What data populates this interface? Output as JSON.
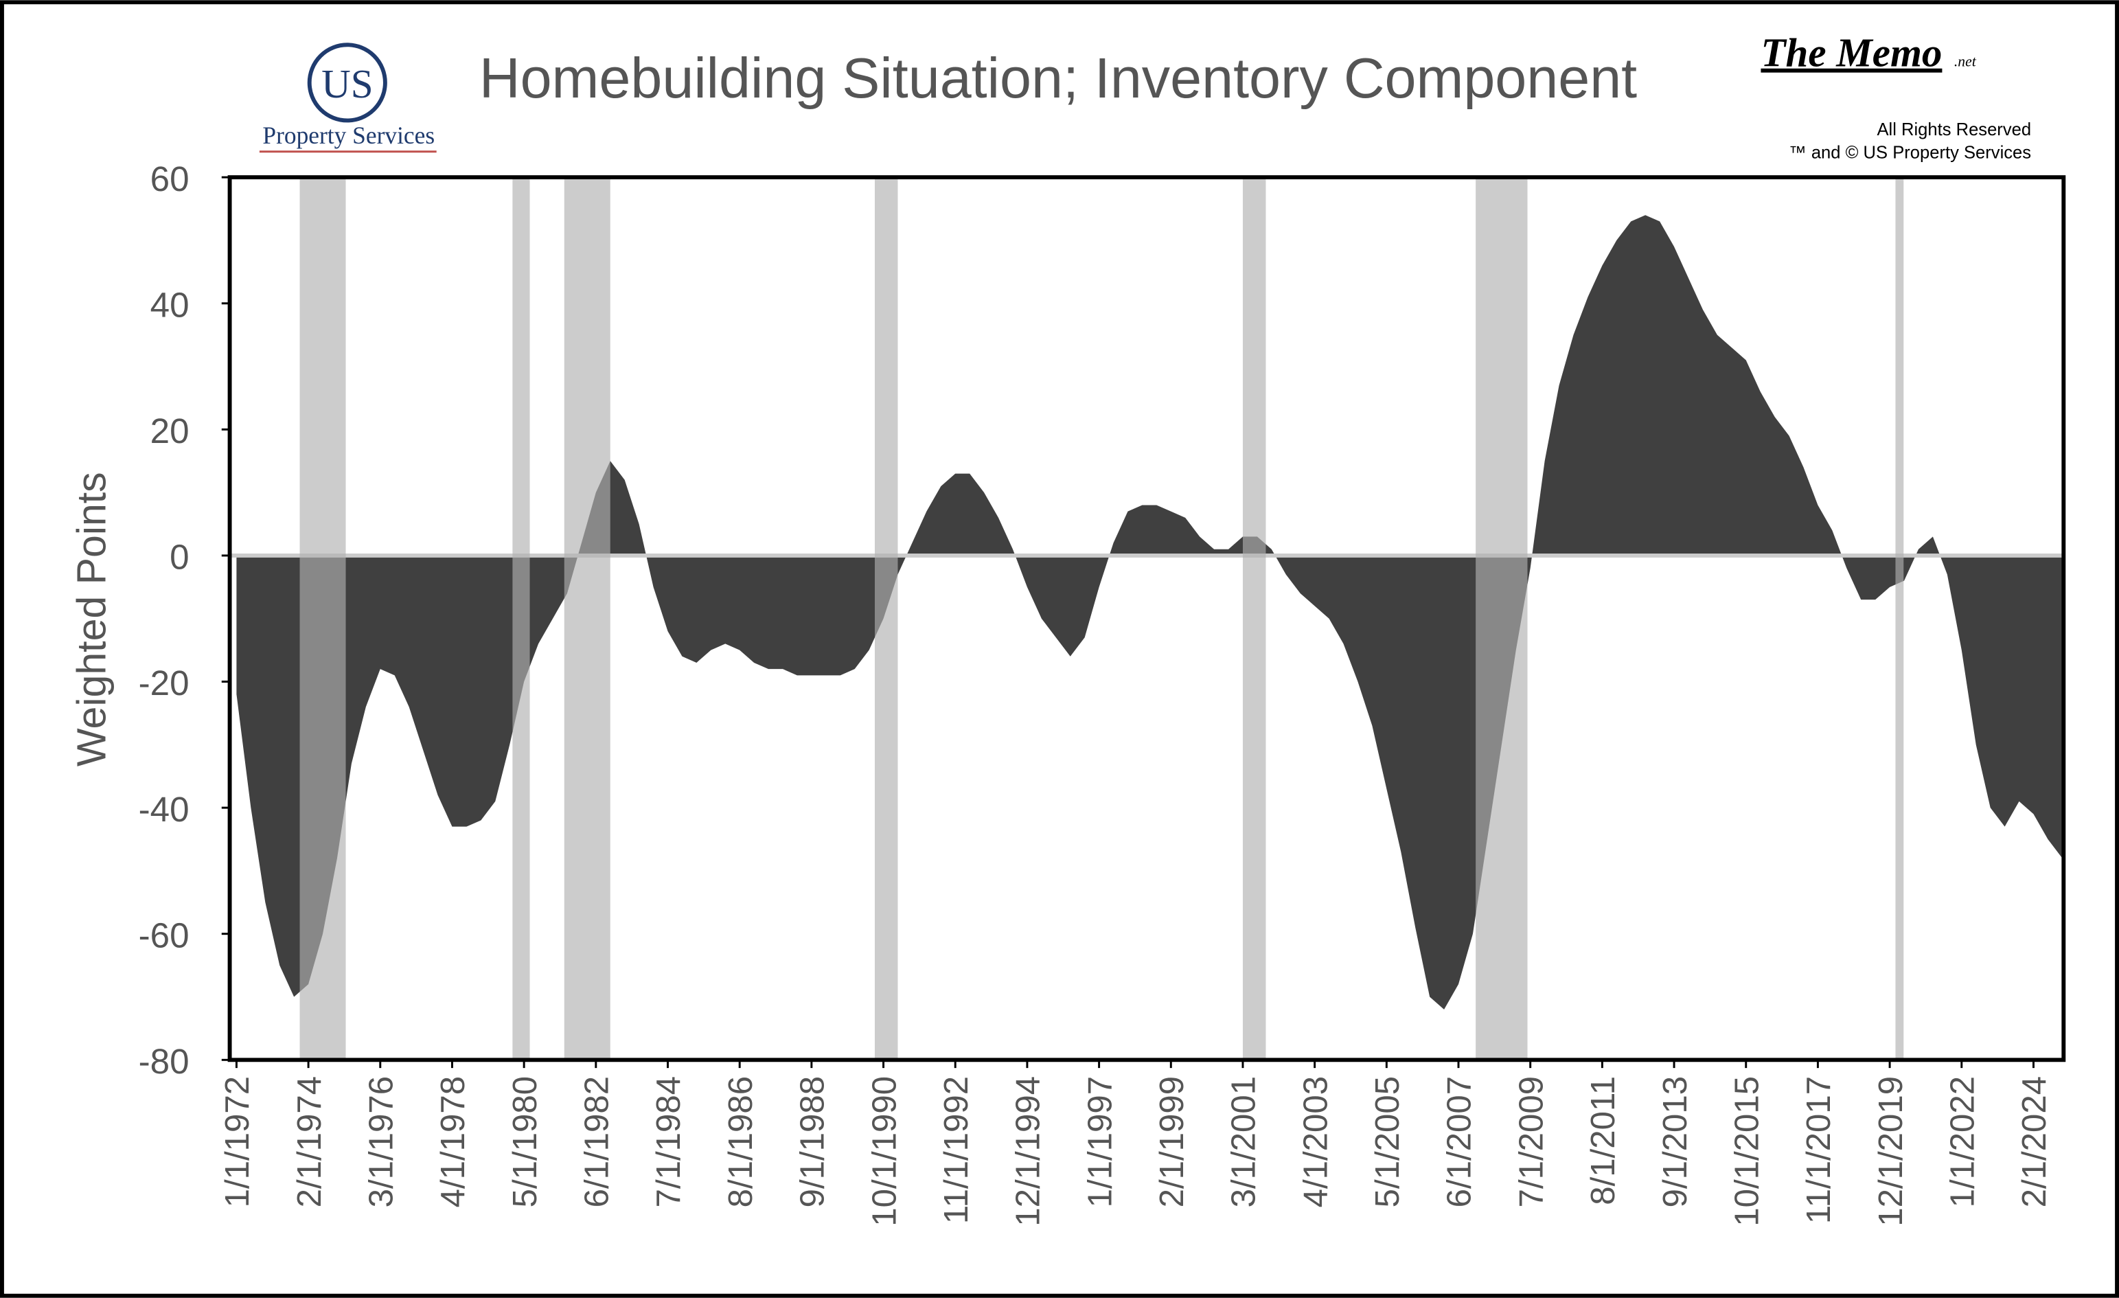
{
  "header": {
    "logo": "US",
    "logo_sub": "Property Services",
    "brand": "The Memo",
    "brand_suffix": ".net",
    "rights": "All Rights Reserved",
    "copyright": "™ and © US Property Services"
  },
  "chart_data": {
    "type": "area",
    "title": "Homebuilding Situation; Inventory Component",
    "ylabel": "Weighted Points",
    "color": "#404040",
    "band_color": "#b0b0b0",
    "ylim": [
      -80,
      60
    ],
    "yticks": [
      -80,
      -60,
      -40,
      -20,
      0,
      20,
      40,
      60
    ],
    "x": [
      "1/1/1972",
      "6/1/1972",
      "11/1/1972",
      "4/1/1973",
      "9/1/1973",
      "2/1/1974",
      "7/1/1974",
      "12/1/1974",
      "5/1/1975",
      "10/1/1975",
      "3/1/1976",
      "8/1/1976",
      "1/1/1977",
      "6/1/1977",
      "11/1/1977",
      "4/1/1978",
      "9/1/1978",
      "2/1/1979",
      "7/1/1979",
      "12/1/1979",
      "5/1/1980",
      "10/1/1980",
      "3/1/1981",
      "8/1/1981",
      "1/1/1982",
      "6/1/1982",
      "11/1/1982",
      "4/1/1983",
      "9/1/1983",
      "2/1/1984",
      "7/1/1984",
      "12/1/1984",
      "5/1/1985",
      "10/1/1985",
      "3/1/1986",
      "8/1/1986",
      "1/1/1987",
      "6/1/1987",
      "11/1/1987",
      "4/1/1988",
      "9/1/1988",
      "2/1/1989",
      "7/1/1989",
      "12/1/1989",
      "5/1/1990",
      "10/1/1990",
      "3/1/1991",
      "8/1/1991",
      "1/1/1992",
      "6/1/1992",
      "11/1/1992",
      "4/1/1993",
      "9/1/1993",
      "2/1/1994",
      "7/1/1994",
      "12/1/1994",
      "5/1/1995",
      "10/1/1995",
      "3/1/1996",
      "8/1/1996",
      "1/1/1997",
      "6/1/1997",
      "11/1/1997",
      "4/1/1998",
      "9/1/1998",
      "2/1/1999",
      "7/1/1999",
      "12/1/1999",
      "5/1/2000",
      "10/1/2000",
      "3/1/2001",
      "8/1/2001",
      "1/1/2002",
      "6/1/2002",
      "11/1/2002",
      "4/1/2003",
      "9/1/2003",
      "2/1/2004",
      "7/1/2004",
      "12/1/2004",
      "5/1/2005",
      "10/1/2005",
      "3/1/2006",
      "8/1/2006",
      "1/1/2007",
      "6/1/2007",
      "11/1/2007",
      "4/1/2008",
      "9/1/2008",
      "2/1/2009",
      "7/1/2009",
      "12/1/2009",
      "5/1/2010",
      "10/1/2010",
      "3/1/2011",
      "8/1/2011",
      "1/1/2012",
      "6/1/2012",
      "11/1/2012",
      "4/1/2013",
      "9/1/2013",
      "2/1/2014",
      "7/1/2014",
      "12/1/2014",
      "5/1/2015",
      "10/1/2015",
      "3/1/2016",
      "8/1/2016",
      "1/1/2017",
      "6/1/2017",
      "11/1/2017",
      "4/1/2018",
      "9/1/2018",
      "2/1/2019",
      "7/1/2019",
      "12/1/2019",
      "5/1/2020",
      "10/1/2020",
      "3/1/2021",
      "8/1/2021",
      "1/1/2022",
      "6/1/2022",
      "11/1/2022",
      "4/1/2023",
      "9/1/2023",
      "2/1/2024",
      "7/1/2024",
      "12/1/2024"
    ],
    "values": [
      -22,
      -40,
      -55,
      -65,
      -70,
      -68,
      -60,
      -48,
      -33,
      -24,
      -18,
      -19,
      -24,
      -31,
      -38,
      -43,
      -43,
      -42,
      -39,
      -30,
      -20,
      -14,
      -10,
      -6,
      2,
      10,
      15,
      12,
      5,
      -5,
      -12,
      -16,
      -17,
      -15,
      -14,
      -15,
      -17,
      -18,
      -18,
      -19,
      -19,
      -19,
      -19,
      -18,
      -15,
      -10,
      -3,
      2,
      7,
      11,
      13,
      13,
      10,
      6,
      1,
      -5,
      -10,
      -13,
      -16,
      -13,
      -5,
      2,
      7,
      8,
      8,
      7,
      6,
      3,
      1,
      1,
      3,
      3,
      1,
      -3,
      -6,
      -8,
      -10,
      -14,
      -20,
      -27,
      -37,
      -47,
      -59,
      -70,
      -72,
      -68,
      -60,
      -45,
      -30,
      -15,
      -2,
      15,
      27,
      35,
      41,
      46,
      50,
      53,
      54,
      53,
      49,
      44,
      39,
      35,
      33,
      31,
      26,
      22,
      19,
      14,
      8,
      4,
      -2,
      -7,
      -7,
      -5,
      -4,
      1,
      3,
      -3,
      -15,
      -30,
      -40,
      -43,
      -39,
      -41,
      -45,
      -48
    ],
    "xticks": [
      "1/1/1972",
      "2/1/1974",
      "3/1/1976",
      "4/1/1978",
      "5/1/1980",
      "6/1/1982",
      "7/1/1984",
      "8/1/1986",
      "9/1/1988",
      "10/1/1990",
      "11/1/1992",
      "12/1/1994",
      "1/1/1997",
      "2/1/1999",
      "3/1/2001",
      "4/1/2003",
      "5/1/2005",
      "6/1/2007",
      "7/1/2009",
      "8/1/2011",
      "9/1/2013",
      "10/1/2015",
      "11/1/2017",
      "12/1/2019",
      "1/1/2022",
      "2/1/2024"
    ],
    "recessions": [
      [
        "11/1/1973",
        "3/1/1975"
      ],
      [
        "1/1/1980",
        "7/1/1980"
      ],
      [
        "7/1/1981",
        "11/1/1982"
      ],
      [
        "7/1/1990",
        "3/1/1991"
      ],
      [
        "3/1/2001",
        "11/1/2001"
      ],
      [
        "12/1/2007",
        "6/1/2009"
      ],
      [
        "2/1/2020",
        "4/1/2020"
      ]
    ]
  }
}
